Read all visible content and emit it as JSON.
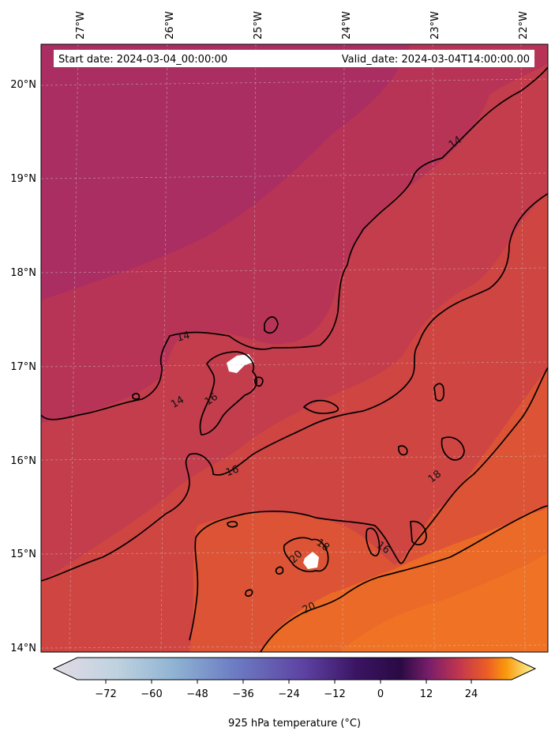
{
  "header": {
    "start_label": "Start date: 2024-03-04_00:00:00",
    "valid_label": "Valid_date: 2024-03-04T14:00:00.00"
  },
  "axes": {
    "lon_ticks": [
      "27°W",
      "26°W",
      "25°W",
      "24°W",
      "23°W",
      "22°W"
    ],
    "lat_ticks": [
      "20°N",
      "19°N",
      "18°N",
      "17°N",
      "16°N",
      "15°N",
      "14°N"
    ]
  },
  "contours": {
    "labels": [
      "14",
      "14",
      "14",
      "16",
      "16",
      "16",
      "18",
      "18",
      "20",
      "20"
    ]
  },
  "colorbar": {
    "title": "925 hPa temperature ($^\\circ$C)",
    "title_display": "925 hPa temperature (°C)",
    "ticks": [
      "−72",
      "−60",
      "−48",
      "−36",
      "−24",
      "−12",
      "0",
      "12",
      "24"
    ],
    "colormap": "inferno-like diverging (white-blue-purple-red-orange-yellow)",
    "colors": [
      "#e2dbe6",
      "#9fc1d6",
      "#6d7fc4",
      "#5b3b9c",
      "#2c0a4a",
      "#7c1f6c",
      "#c2384c",
      "#ef6a22",
      "#fbf9a3"
    ]
  },
  "map_colors": {
    "region_14": "#b83457",
    "region_14_dark": "#a72e63",
    "region_16": "#cc4146",
    "region_18": "#de5535",
    "region_20": "#ec6a27"
  }
}
